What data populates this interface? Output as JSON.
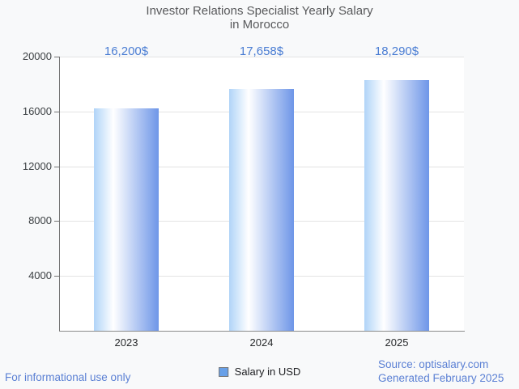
{
  "header": {
    "line1": "Investor Relations Specialist Yearly Salary",
    "line2": "in Morocco"
  },
  "chart_data": {
    "type": "bar",
    "title": "Investor Relations Specialist Yearly Salary in Morocco",
    "categories": [
      "2023",
      "2024",
      "2025"
    ],
    "series": [
      {
        "name": "Salary in USD",
        "values": [
          16200,
          17658,
          18290
        ]
      }
    ],
    "value_labels": [
      "16,200$",
      "17,658$",
      "18,290$"
    ],
    "xlabel": "",
    "ylabel": "",
    "ylim": [
      0,
      20000
    ],
    "yticks": [
      4000,
      8000,
      12000,
      16000,
      20000
    ],
    "grid": "horizontal",
    "legend_position": "bottom-center"
  },
  "legend": {
    "swatch_icon": "square-icon"
  },
  "footer": {
    "disclaimer": "For informational use only",
    "source": "Source: optisalary.com",
    "generated": "Generated February 2025"
  },
  "colors": {
    "background": "#f8f9fa",
    "plot_background": "#ffffff",
    "gridline": "#e3e3e3",
    "axis": "#757575",
    "axis_bottom": "#8a8a8a",
    "title": "#58595b",
    "tick_label": "#3c4043",
    "category_label": "#27292b",
    "value_label": "#4a7dd3",
    "footer_blue": "#5b80d4",
    "legend_swatch": "#68a0e8",
    "legend_text": "#202124",
    "bar_gradient": [
      "#b0d4f8",
      "#ffffff",
      "#6e96e8"
    ]
  }
}
